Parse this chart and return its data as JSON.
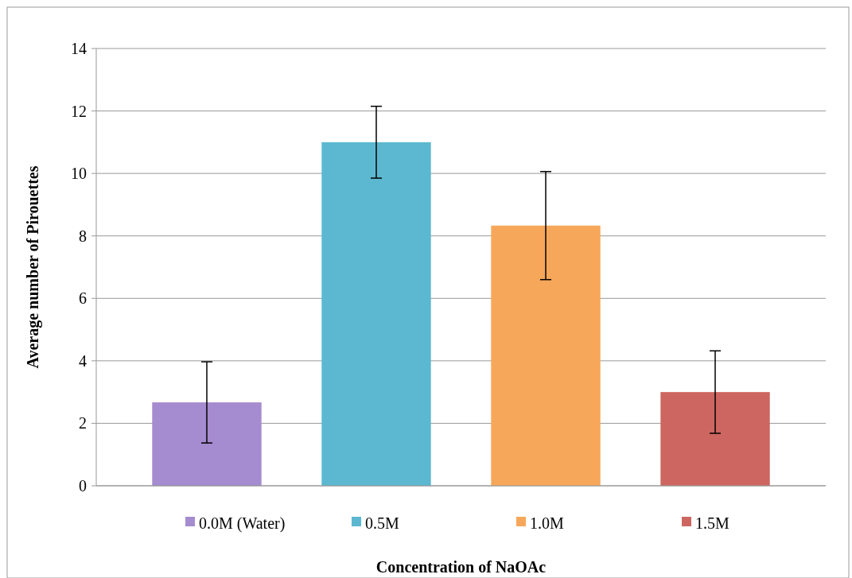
{
  "chart_data": {
    "type": "bar",
    "xlabel": "Concentration of NaOAc",
    "ylabel": "Average number of Pirouettes",
    "categories": [
      null,
      null,
      null,
      null
    ],
    "series": [
      {
        "name": "0.0M (Water)",
        "color": "#a58bcf",
        "values": [
          2.67,
          null,
          null,
          null
        ],
        "errors": [
          1.3,
          null,
          null,
          null
        ]
      },
      {
        "name": "0.5M",
        "color": "#5bb8d0",
        "values": [
          null,
          11,
          null,
          null
        ],
        "errors": [
          null,
          1.15,
          null,
          null
        ]
      },
      {
        "name": "1.0M",
        "color": "#f7a75a",
        "values": [
          null,
          null,
          8.33,
          null
        ],
        "errors": [
          null,
          null,
          1.73,
          null
        ]
      },
      {
        "name": "1.5M",
        "color": "#cd6660",
        "values": [
          null,
          null,
          null,
          3
        ],
        "errors": [
          null,
          null,
          null,
          1.32
        ]
      }
    ],
    "ylim": [
      0,
      14
    ],
    "yticks": [
      0,
      2,
      4,
      6,
      8,
      10,
      12,
      14
    ],
    "grid": "y",
    "legend": "bottom"
  }
}
